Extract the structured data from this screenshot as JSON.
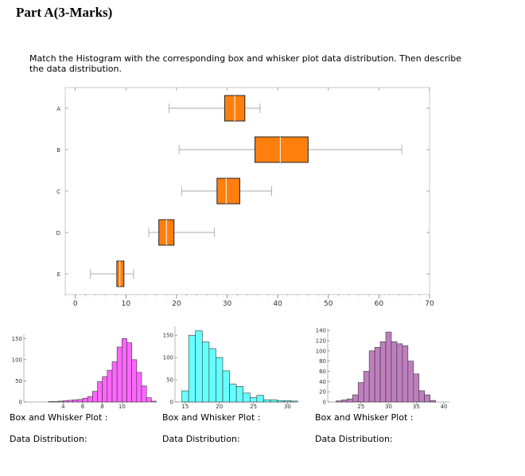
{
  "title": "Part A(3-Marks)",
  "instructions": "Match the Histogram with the corresponding box and whisker plot data distribution. Then describe the data distribution.",
  "colors": {
    "box": "#ff7f0e",
    "hist1": "#ff66ff",
    "hist2": "#66ffff",
    "hist3": "#bf7fbf"
  },
  "chart_data": [
    {
      "type": "box",
      "categories": [
        "A",
        "B",
        "C",
        "D",
        "E"
      ],
      "xlim": [
        -2,
        70
      ],
      "xticks": [
        0,
        10,
        20,
        30,
        40,
        50,
        60,
        70
      ],
      "boxes": [
        {
          "category": "A",
          "min": 18.5,
          "q1": 29.5,
          "median": 31.5,
          "q3": 33.5,
          "max": 36.5
        },
        {
          "category": "B",
          "min": 20.5,
          "q1": 35.5,
          "median": 40.5,
          "q3": 46.0,
          "max": 64.5
        },
        {
          "category": "C",
          "min": 21.0,
          "q1": 28.0,
          "median": 29.8,
          "q3": 32.5,
          "max": 38.8
        },
        {
          "category": "D",
          "min": 14.5,
          "q1": 16.5,
          "median": 18.0,
          "q3": 19.5,
          "max": 27.5
        },
        {
          "category": "E",
          "min": 3.0,
          "q1": 8.2,
          "median": 8.8,
          "q3": 9.6,
          "max": 11.5
        }
      ]
    },
    {
      "type": "bar",
      "name": "hist1",
      "bin_start": 2.5,
      "bin_width": 0.5,
      "values": [
        1,
        1,
        2,
        3,
        4,
        5,
        6,
        9,
        13,
        25,
        48,
        60,
        75,
        95,
        130,
        150,
        140,
        100,
        70,
        38,
        10,
        2
      ],
      "xlim": [
        0,
        12
      ],
      "ylim": [
        0,
        160
      ],
      "xticks": [
        4,
        6,
        8,
        10
      ],
      "yticks": [
        0,
        50,
        100,
        150
      ]
    },
    {
      "type": "bar",
      "name": "hist2",
      "bin_start": 14.5,
      "bin_width": 1,
      "values": [
        25,
        150,
        160,
        135,
        120,
        100,
        70,
        40,
        35,
        20,
        10,
        15,
        5,
        5,
        3,
        3,
        2
      ],
      "xlim": [
        13.5,
        31
      ],
      "ylim": [
        0,
        170
      ],
      "xticks": [
        15,
        20,
        25,
        30
      ],
      "yticks": [
        0,
        50,
        100,
        150
      ]
    },
    {
      "type": "bar",
      "name": "hist3",
      "bin_start": 20.5,
      "bin_width": 1,
      "values": [
        2,
        4,
        6,
        14,
        38,
        60,
        100,
        107,
        118,
        137,
        118,
        114,
        110,
        80,
        55,
        22,
        14,
        3
      ],
      "xlim": [
        19,
        41
      ],
      "ylim": [
        0,
        145
      ],
      "xticks": [
        25,
        30,
        35,
        40
      ],
      "yticks": [
        0,
        20,
        40,
        60,
        80,
        100,
        120,
        140
      ]
    }
  ],
  "questions": [
    {
      "box_label": "Box and Whisker Plot :",
      "dist_label": "Data Distribution:"
    },
    {
      "box_label": "Box and Whisker Plot :",
      "dist_label": "Data Distribution:"
    },
    {
      "box_label": "Box and Whisker Plot :",
      "dist_label": "Data Distribution:"
    }
  ]
}
